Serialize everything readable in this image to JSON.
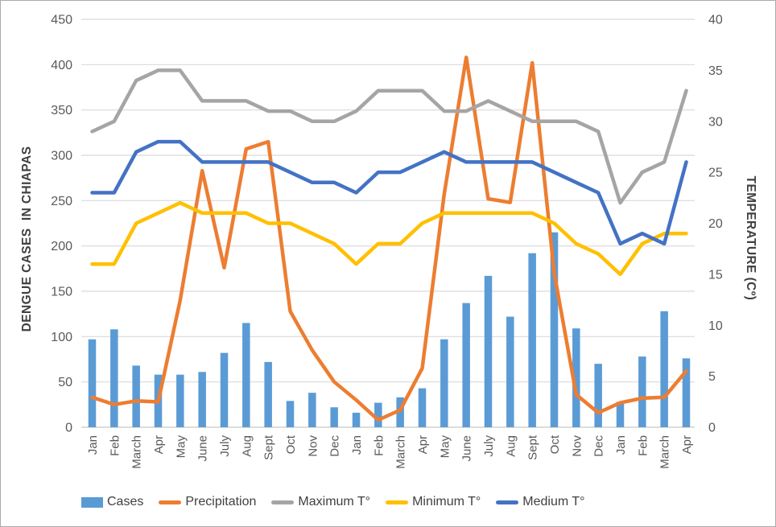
{
  "window": {
    "background": "#ffffff",
    "border_color": "#ababab"
  },
  "chart_data": {
    "type": "combo-bar-line",
    "title": "",
    "categories": [
      "Jan",
      "Feb",
      "March",
      "Apr",
      "May",
      "June",
      "July",
      "Aug",
      "Sept",
      "Oct",
      "Nov",
      "Dec",
      "Jan",
      "Feb",
      "March",
      "Apr",
      "May",
      "June",
      "July",
      "Aug",
      "Sept",
      "Oct",
      "Nov",
      "Dec",
      "Jan",
      "Feb",
      "March",
      "Apr"
    ],
    "series": [
      {
        "name": "Cases",
        "type": "bar",
        "axis": "left",
        "color": "#5B9BD5",
        "values": [
          97,
          108,
          68,
          58,
          58,
          61,
          82,
          115,
          72,
          29,
          38,
          22,
          16,
          27,
          33,
          43,
          97,
          137,
          167,
          122,
          192,
          215,
          109,
          70,
          28,
          78,
          128,
          76
        ]
      },
      {
        "name": "Precipitation",
        "type": "line",
        "axis": "left",
        "color": "#ED7D31",
        "values": [
          33,
          25,
          29,
          28,
          140,
          283,
          176,
          307,
          315,
          128,
          85,
          50,
          30,
          8,
          19,
          65,
          257,
          408,
          252,
          248,
          402,
          170,
          36,
          16,
          27,
          32,
          33,
          62
        ]
      },
      {
        "name": "Maximum T°",
        "type": "line",
        "axis": "right",
        "color": "#A5A5A5",
        "values": [
          29,
          30,
          34,
          35,
          35,
          32,
          32,
          32,
          31,
          31,
          30,
          30,
          31,
          33,
          33,
          33,
          31,
          31,
          32,
          31,
          30,
          30,
          30,
          29,
          22,
          25,
          26,
          33
        ]
      },
      {
        "name": "Minimum T°",
        "type": "line",
        "axis": "right",
        "color": "#FFC000",
        "values": [
          16,
          16,
          20,
          21,
          22,
          21,
          21,
          21,
          20,
          20,
          19,
          18,
          16,
          18,
          18,
          20,
          21,
          21,
          21,
          21,
          21,
          20,
          18,
          17,
          15,
          18,
          19,
          19
        ]
      },
      {
        "name": "Medium T°",
        "type": "line",
        "axis": "right",
        "color": "#4472C4",
        "values": [
          23,
          23,
          27,
          28,
          28,
          26,
          26,
          26,
          26,
          25,
          24,
          24,
          23,
          25,
          25,
          26,
          27,
          26,
          26,
          26,
          26,
          25,
          24,
          23,
          18,
          19,
          18,
          26
        ]
      }
    ],
    "left_axis": {
      "title": "DENGUE CASES  IN CHIAPAS",
      "min": 0,
      "max": 450,
      "step": 50,
      "tick_labels": [
        "0",
        "50",
        "100",
        "150",
        "200",
        "250",
        "300",
        "350",
        "400",
        "450"
      ]
    },
    "right_axis": {
      "title": "TEMPERATURE (Cº)",
      "min": 0,
      "max": 40,
      "step": 5,
      "tick_labels": [
        "0",
        "5",
        "10",
        "15",
        "20",
        "25",
        "30",
        "35",
        "40"
      ]
    },
    "grid": true,
    "legend_position": "bottom"
  },
  "legend": {
    "items": [
      {
        "label": "Cases",
        "marker": "bar",
        "color": "#5B9BD5"
      },
      {
        "label": "Precipitation",
        "marker": "line",
        "color": "#ED7D31"
      },
      {
        "label": "Maximum T°",
        "marker": "line",
        "color": "#A5A5A5"
      },
      {
        "label": "Minimum T°",
        "marker": "line",
        "color": "#FFC000"
      },
      {
        "label": "Medium T°",
        "marker": "line",
        "color": "#4472C4"
      }
    ]
  },
  "styles": {
    "gridline_color": "#D9D9D9",
    "axis_line_color": "#C6C6C6",
    "tick_color": "#595959",
    "axis_title_color": "#404040",
    "legend_text_color": "#404040"
  }
}
